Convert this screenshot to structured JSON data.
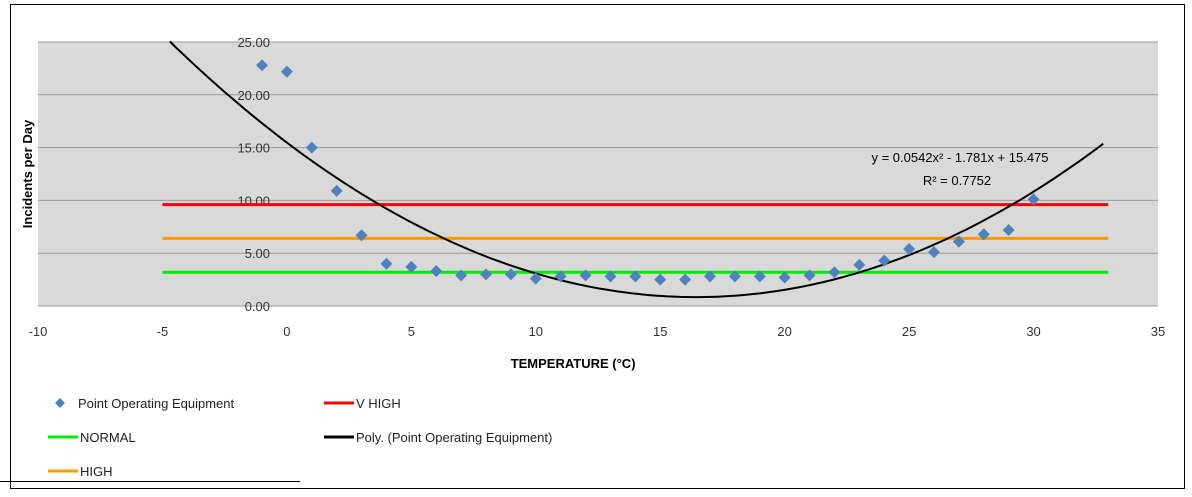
{
  "chart_data": {
    "type": "scatter",
    "xlabel": "TEMPERATURE (°C)",
    "ylabel": "Incidents per Day",
    "xlim": [
      -10,
      35
    ],
    "ylim": [
      0,
      25
    ],
    "x_ticks": [
      "-10",
      "-5",
      "0",
      "5",
      "10",
      "15",
      "20",
      "25",
      "30",
      "35"
    ],
    "y_ticks": [
      "0.00",
      "5.00",
      "10.00",
      "15.00",
      "20.00",
      "25.00"
    ],
    "grid": "horizontal",
    "plot_background": "#d9d9d9",
    "series": [
      {
        "name": "Point Operating Equipment",
        "kind": "scatter",
        "color": "#4f81bd",
        "marker": "diamond",
        "points": [
          [
            -1,
            22.8
          ],
          [
            0,
            22.2
          ],
          [
            1,
            15.0
          ],
          [
            2,
            10.9
          ],
          [
            3,
            6.7
          ],
          [
            4,
            4.0
          ],
          [
            5,
            3.7
          ],
          [
            6,
            3.3
          ],
          [
            7,
            2.9
          ],
          [
            8,
            3.0
          ],
          [
            9,
            3.0
          ],
          [
            10,
            2.6
          ],
          [
            11,
            2.8
          ],
          [
            12,
            2.9
          ],
          [
            13,
            2.8
          ],
          [
            14,
            2.8
          ],
          [
            15,
            2.5
          ],
          [
            16,
            2.5
          ],
          [
            17,
            2.8
          ],
          [
            18,
            2.8
          ],
          [
            19,
            2.8
          ],
          [
            20,
            2.7
          ],
          [
            21,
            2.9
          ],
          [
            22,
            3.2
          ],
          [
            23,
            3.9
          ],
          [
            24,
            4.3
          ],
          [
            25,
            5.4
          ],
          [
            26,
            5.1
          ],
          [
            27,
            6.1
          ],
          [
            28,
            6.8
          ],
          [
            29,
            7.2
          ],
          [
            30,
            10.1
          ]
        ]
      },
      {
        "name": "V HIGH",
        "kind": "hline",
        "color": "#ff0000",
        "y": 9.6,
        "x_range": [
          -5,
          33
        ]
      },
      {
        "name": "HIGH",
        "kind": "hline",
        "color": "#ff9900",
        "y": 6.4,
        "x_range": [
          -5,
          33
        ]
      },
      {
        "name": "NORMAL",
        "kind": "hline",
        "color": "#00ee00",
        "y": 3.2,
        "x_range": [
          -5,
          33
        ]
      },
      {
        "name": "Poly. (Point Operating Equipment)",
        "kind": "polynomial",
        "color": "#000000",
        "coefficients": [
          15.475,
          -1.781,
          0.0542
        ],
        "x_range": [
          -4.7,
          33
        ]
      }
    ],
    "annotations": {
      "equation": "y = 0.0542x² - 1.781x + 15.475",
      "r_squared": "R² = 0.7752"
    },
    "legend_position": "bottom-left",
    "legend_rows": [
      [
        "Point Operating Equipment",
        "V HIGH"
      ],
      [
        "NORMAL",
        "Poly. (Point Operating Equipment)"
      ],
      [
        "HIGH"
      ]
    ]
  }
}
